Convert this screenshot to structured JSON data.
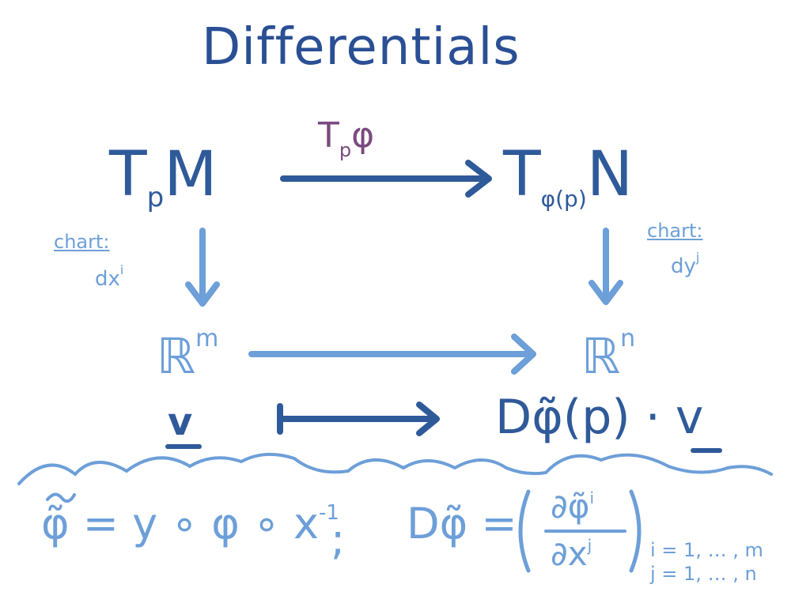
{
  "diagram": {
    "title": "Differentials",
    "top_left": {
      "base": "T",
      "sub": "p",
      "after": "M"
    },
    "top_right": {
      "base": "T",
      "sub": "φ(p)",
      "after": "N"
    },
    "top_arrow_label": {
      "base": "T",
      "sub": "p",
      "after": "φ"
    },
    "left_chart": {
      "label": "chart:",
      "coord": "dx",
      "coord_sup": "i"
    },
    "right_chart": {
      "label": "chart:",
      "coord": "dy",
      "coord_sup": "j"
    },
    "mid_left": {
      "base": "ℝ",
      "sup": "m"
    },
    "mid_right": {
      "base": "ℝ",
      "sup": "n"
    },
    "bottom_left": "v",
    "bottom_right": "Dφ̃(p) · v",
    "formula_left": "φ̃ = y ∘ φ ∘ x",
    "formula_left_sup": "-1",
    "separator": ";",
    "formula_right_lhs": "Dφ̃ =",
    "formula_num": "∂φ̃",
    "formula_num_sup": "i",
    "formula_den": "∂x",
    "formula_den_sup": "j",
    "index_i": "i = 1, … , m",
    "index_j": "j = 1, … , n",
    "colors": {
      "dark": "#2f5a9a",
      "light": "#6d9fd8",
      "purple": "#7a4a7e"
    }
  }
}
